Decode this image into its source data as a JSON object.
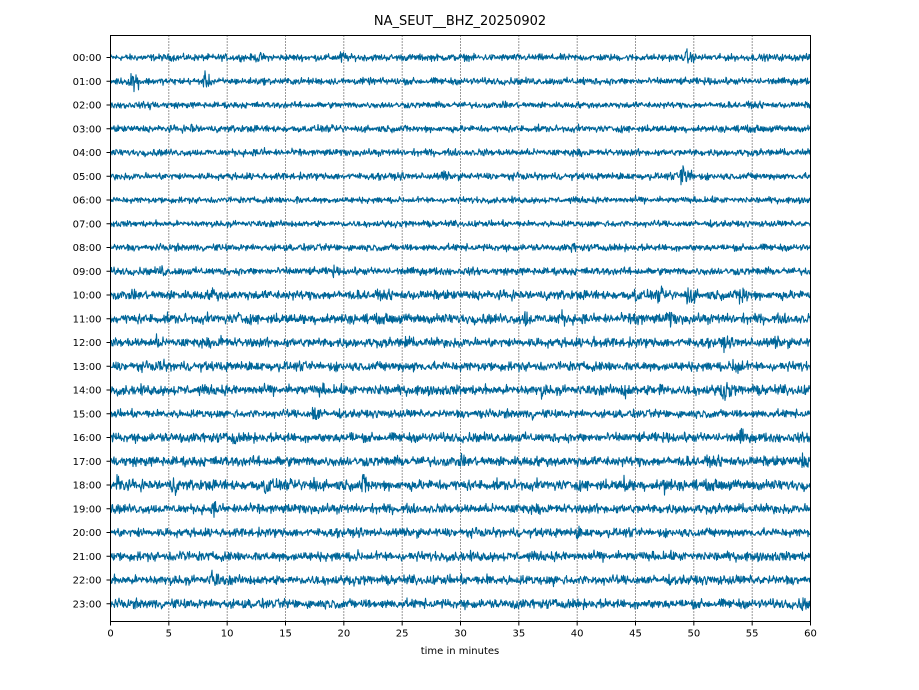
{
  "chart_data": {
    "type": "line",
    "title": "NA_SEUT__BHZ_20250902",
    "xlabel": "time in minutes",
    "ylabel": "",
    "xlim": [
      0,
      60
    ],
    "x_ticks": [
      "0",
      "5",
      "10",
      "15",
      "20",
      "25",
      "30",
      "35",
      "40",
      "45",
      "50",
      "55",
      "60"
    ],
    "grid": "vertical dotted every 5 minutes",
    "trace_color": "#006699",
    "rows": [
      {
        "label": "00:00",
        "noise": 0.22,
        "events": [
          {
            "minute": 12.6,
            "amp": 0.45
          },
          {
            "minute": 19.8,
            "amp": 0.5
          },
          {
            "minute": 49.4,
            "amp": 0.55
          }
        ]
      },
      {
        "label": "01:00",
        "noise": 0.22,
        "events": [
          {
            "minute": 1.8,
            "amp": 0.9
          },
          {
            "minute": 8.1,
            "amp": 0.6
          },
          {
            "minute": 40.5,
            "amp": 0.35
          }
        ]
      },
      {
        "label": "02:00",
        "noise": 0.2,
        "events": [
          {
            "minute": 3.5,
            "amp": 0.45
          },
          {
            "minute": 1.2,
            "amp": 0.35
          }
        ]
      },
      {
        "label": "03:00",
        "noise": 0.22,
        "events": [
          {
            "minute": 7.0,
            "amp": 0.45
          },
          {
            "minute": 21.5,
            "amp": 0.3
          },
          {
            "minute": 54.0,
            "amp": 0.35
          }
        ]
      },
      {
        "label": "04:00",
        "noise": 0.22,
        "events": [
          {
            "minute": 13.0,
            "amp": 0.35
          },
          {
            "minute": 32.0,
            "amp": 0.3
          }
        ]
      },
      {
        "label": "05:00",
        "noise": 0.22,
        "events": [
          {
            "minute": 28.5,
            "amp": 0.45
          },
          {
            "minute": 49.0,
            "amp": 1.1
          }
        ]
      },
      {
        "label": "06:00",
        "noise": 0.2,
        "events": [
          {
            "minute": 16.0,
            "amp": 0.3
          }
        ]
      },
      {
        "label": "07:00",
        "noise": 0.2,
        "events": [
          {
            "minute": 43.0,
            "amp": 0.3
          }
        ]
      },
      {
        "label": "08:00",
        "noise": 0.22,
        "events": [
          {
            "minute": 39.5,
            "amp": 0.4
          },
          {
            "minute": 55.0,
            "amp": 0.3
          }
        ]
      },
      {
        "label": "09:00",
        "noise": 0.24,
        "events": [
          {
            "minute": 4.3,
            "amp": 0.5
          },
          {
            "minute": 18.9,
            "amp": 0.5
          }
        ]
      },
      {
        "label": "10:00",
        "noise": 0.3,
        "events": [
          {
            "minute": 8.7,
            "amp": 0.65
          },
          {
            "minute": 47.0,
            "amp": 0.6
          },
          {
            "minute": 49.5,
            "amp": 0.9
          },
          {
            "minute": 54.0,
            "amp": 0.95
          },
          {
            "minute": 45.0,
            "amp": 0.6
          }
        ]
      },
      {
        "label": "11:00",
        "noise": 0.32,
        "events": [
          {
            "minute": 11.0,
            "amp": 0.6
          },
          {
            "minute": 35.5,
            "amp": 0.75
          },
          {
            "minute": 38.5,
            "amp": 0.7
          },
          {
            "minute": 45.0,
            "amp": 0.7
          },
          {
            "minute": 47.8,
            "amp": 0.75
          }
        ]
      },
      {
        "label": "12:00",
        "noise": 0.3,
        "events": [
          {
            "minute": 4.0,
            "amp": 0.55
          },
          {
            "minute": 9.5,
            "amp": 0.6
          },
          {
            "minute": 25.2,
            "amp": 0.6
          },
          {
            "minute": 41.5,
            "amp": 0.5
          },
          {
            "minute": 52.5,
            "amp": 0.6
          },
          {
            "minute": 57.0,
            "amp": 0.5
          }
        ]
      },
      {
        "label": "13:00",
        "noise": 0.3,
        "events": [
          {
            "minute": 4.2,
            "amp": 0.6
          },
          {
            "minute": 26.0,
            "amp": 0.45
          },
          {
            "minute": 53.5,
            "amp": 1.0
          },
          {
            "minute": 59.0,
            "amp": 0.4
          }
        ]
      },
      {
        "label": "14:00",
        "noise": 0.32,
        "events": [
          {
            "minute": 18.0,
            "amp": 0.55
          },
          {
            "minute": 23.0,
            "amp": 0.5
          },
          {
            "minute": 37.0,
            "amp": 0.55
          },
          {
            "minute": 44.0,
            "amp": 0.7
          },
          {
            "minute": 47.0,
            "amp": 0.75
          },
          {
            "minute": 52.5,
            "amp": 0.95
          }
        ]
      },
      {
        "label": "15:00",
        "noise": 0.26,
        "events": [
          {
            "minute": 17.4,
            "amp": 0.75
          },
          {
            "minute": 31.5,
            "amp": 0.5
          },
          {
            "minute": 36.0,
            "amp": 0.45
          }
        ]
      },
      {
        "label": "16:00",
        "noise": 0.3,
        "events": [
          {
            "minute": 6.0,
            "amp": 0.5
          },
          {
            "minute": 10.5,
            "amp": 0.55
          },
          {
            "minute": 20.5,
            "amp": 0.5
          },
          {
            "minute": 54.0,
            "amp": 0.65
          }
        ]
      },
      {
        "label": "17:00",
        "noise": 0.32,
        "events": [
          {
            "minute": 0.3,
            "amp": 0.5
          },
          {
            "minute": 14.5,
            "amp": 0.45
          },
          {
            "minute": 30.0,
            "amp": 0.45
          },
          {
            "minute": 59.2,
            "amp": 0.7
          }
        ]
      },
      {
        "label": "18:00",
        "noise": 0.34,
        "events": [
          {
            "minute": 0.6,
            "amp": 0.9
          },
          {
            "minute": 5.3,
            "amp": 0.8
          },
          {
            "minute": 13.3,
            "amp": 0.85
          },
          {
            "minute": 17.2,
            "amp": 0.8
          },
          {
            "minute": 21.6,
            "amp": 0.9
          },
          {
            "minute": 44.0,
            "amp": 0.75
          },
          {
            "minute": 47.5,
            "amp": 0.8
          }
        ]
      },
      {
        "label": "19:00",
        "noise": 0.3,
        "events": [
          {
            "minute": 8.9,
            "amp": 0.6
          },
          {
            "minute": 11.5,
            "amp": 0.5
          },
          {
            "minute": 35.0,
            "amp": 0.5
          }
        ]
      },
      {
        "label": "20:00",
        "noise": 0.28,
        "events": [
          {
            "minute": 2.5,
            "amp": 0.45
          },
          {
            "minute": 40.0,
            "amp": 0.5
          }
        ]
      },
      {
        "label": "21:00",
        "noise": 0.3,
        "events": [
          {
            "minute": 6.0,
            "amp": 0.6
          },
          {
            "minute": 21.0,
            "amp": 0.5
          }
        ]
      },
      {
        "label": "22:00",
        "noise": 0.3,
        "events": [
          {
            "minute": 8.7,
            "amp": 0.8
          },
          {
            "minute": 32.4,
            "amp": 0.55
          },
          {
            "minute": 38.0,
            "amp": 0.45
          }
        ]
      },
      {
        "label": "23:00",
        "noise": 0.3,
        "events": [
          {
            "minute": 34.5,
            "amp": 0.55
          },
          {
            "minute": 59.2,
            "amp": 0.6
          }
        ]
      }
    ]
  }
}
